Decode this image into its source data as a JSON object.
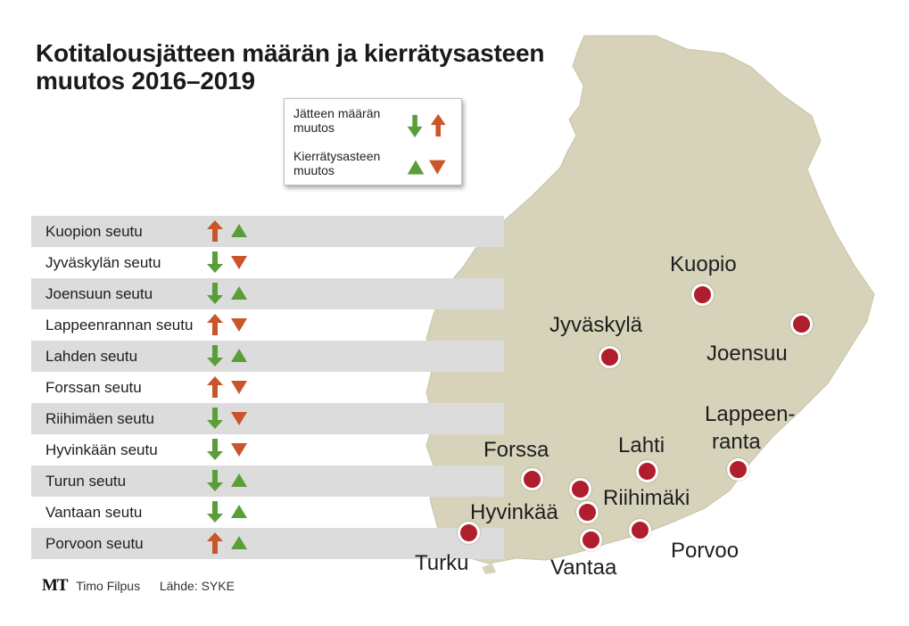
{
  "title": {
    "line1": "Kotitalousjätteen määrän ja kierrätysasteen",
    "line2": "muutos 2016–2019"
  },
  "legend": {
    "amount_label": "Jätteen määrän muutos",
    "recycle_label": "Kierrätysasteen muutos",
    "amount_icons": [
      "arrow-down",
      "arrow-up"
    ],
    "recycle_icons": [
      "triangle-up",
      "triangle-down"
    ]
  },
  "colors": {
    "increase_amount": "#c9552b",
    "decrease_amount": "#5a9e3a",
    "recycle_up": "#5a9e3a",
    "recycle_down": "#c9552b",
    "map_land": "#d6d3ba",
    "city_marker": "#b01e2d",
    "row_shade": "#dcdcdc"
  },
  "regions": [
    {
      "name": "Kuopion seutu",
      "amount": "up",
      "recycling": "up"
    },
    {
      "name": "Jyväskylän seutu",
      "amount": "down",
      "recycling": "down"
    },
    {
      "name": "Joensuun seutu",
      "amount": "down",
      "recycling": "up"
    },
    {
      "name": "Lappeenrannan seutu",
      "amount": "up",
      "recycling": "down"
    },
    {
      "name": "Lahden seutu",
      "amount": "down",
      "recycling": "up"
    },
    {
      "name": "Forssan seutu",
      "amount": "up",
      "recycling": "down"
    },
    {
      "name": "Riihimäen seutu",
      "amount": "down",
      "recycling": "down"
    },
    {
      "name": "Hyvinkään seutu",
      "amount": "down",
      "recycling": "down"
    },
    {
      "name": "Turun seutu",
      "amount": "down",
      "recycling": "up"
    },
    {
      "name": "Vantaan seutu",
      "amount": "down",
      "recycling": "up"
    },
    {
      "name": "Porvoon seutu",
      "amount": "up",
      "recycling": "up"
    }
  ],
  "cities": {
    "kuopio": "Kuopio",
    "jyvaskyla": "Jyväskylä",
    "joensuu": "Joensuu",
    "lappeenranta_1": "Lappeen-",
    "lappeenranta_2": "ranta",
    "forssa": "Forssa",
    "lahti": "Lahti",
    "riihimaki": "Riihimäki",
    "hyvinkaa": "Hyvinkää",
    "turku": "Turku",
    "vantaa": "Vantaa",
    "porvoo": "Porvoo"
  },
  "credits": {
    "logo": "MT",
    "author": "Timo Filpus",
    "source": "Lähde: SYKE"
  }
}
